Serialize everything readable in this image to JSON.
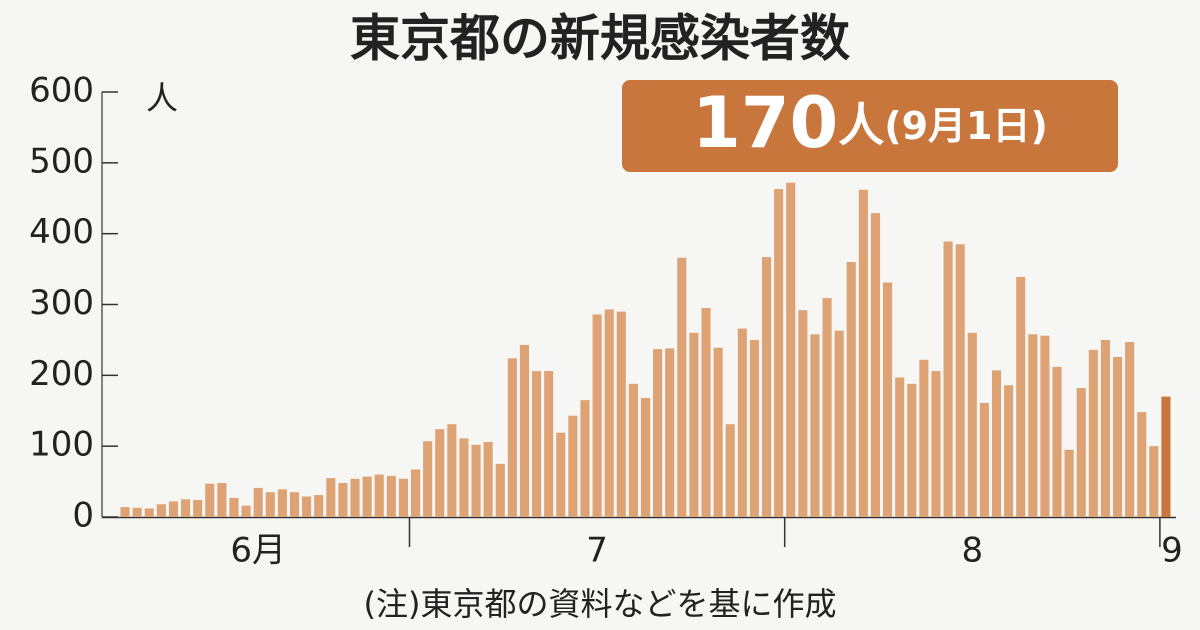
{
  "chart_data": {
    "type": "bar",
    "title": "東京都の新規感染者数",
    "y_unit": "人",
    "note": "(注)東京都の資料などを基に作成",
    "annotation": {
      "unit": "人",
      "date": "(9月1日)"
    },
    "color": "#dda374",
    "highlight_color": "#c8763c",
    "categories": [
      null,
      null,
      null,
      null,
      null,
      null,
      null,
      null,
      null,
      null,
      null,
      "6月",
      null,
      null,
      null,
      null,
      null,
      null,
      null,
      null,
      null,
      null,
      null,
      null,
      null,
      null,
      null,
      null,
      null,
      null,
      null,
      null,
      null,
      null,
      null,
      null,
      null,
      null,
      null,
      "7",
      null,
      null,
      null,
      null,
      null,
      null,
      null,
      null,
      null,
      null,
      null,
      null,
      null,
      null,
      null,
      null,
      null,
      null,
      null,
      null,
      null,
      null,
      null,
      null,
      null,
      null,
      null,
      null,
      null,
      null,
      "8",
      null,
      null,
      null,
      null,
      null,
      null,
      null,
      null,
      null,
      null,
      null,
      null,
      null,
      null,
      null,
      "9"
    ],
    "values": [
      14,
      13,
      12,
      18,
      22,
      25,
      24,
      47,
      48,
      27,
      16,
      41,
      35,
      39,
      35,
      29,
      31,
      55,
      48,
      54,
      57,
      60,
      58,
      54,
      67,
      107,
      124,
      131,
      111,
      102,
      106,
      75,
      224,
      243,
      206,
      206,
      119,
      143,
      165,
      286,
      293,
      290,
      188,
      168,
      237,
      238,
      366,
      260,
      295,
      239,
      131,
      266,
      250,
      367,
      463,
      472,
      292,
      258,
      309,
      263,
      360,
      462,
      429,
      331,
      197,
      188,
      222,
      206,
      389,
      385,
      260,
      161,
      207,
      186,
      339,
      258,
      256,
      212,
      95,
      182,
      236,
      250,
      226,
      247,
      148,
      100,
      170
    ],
    "ylim": [
      0,
      600
    ],
    "yticks": [
      0,
      100,
      200,
      300,
      400,
      500,
      600
    ],
    "grid": false
  }
}
